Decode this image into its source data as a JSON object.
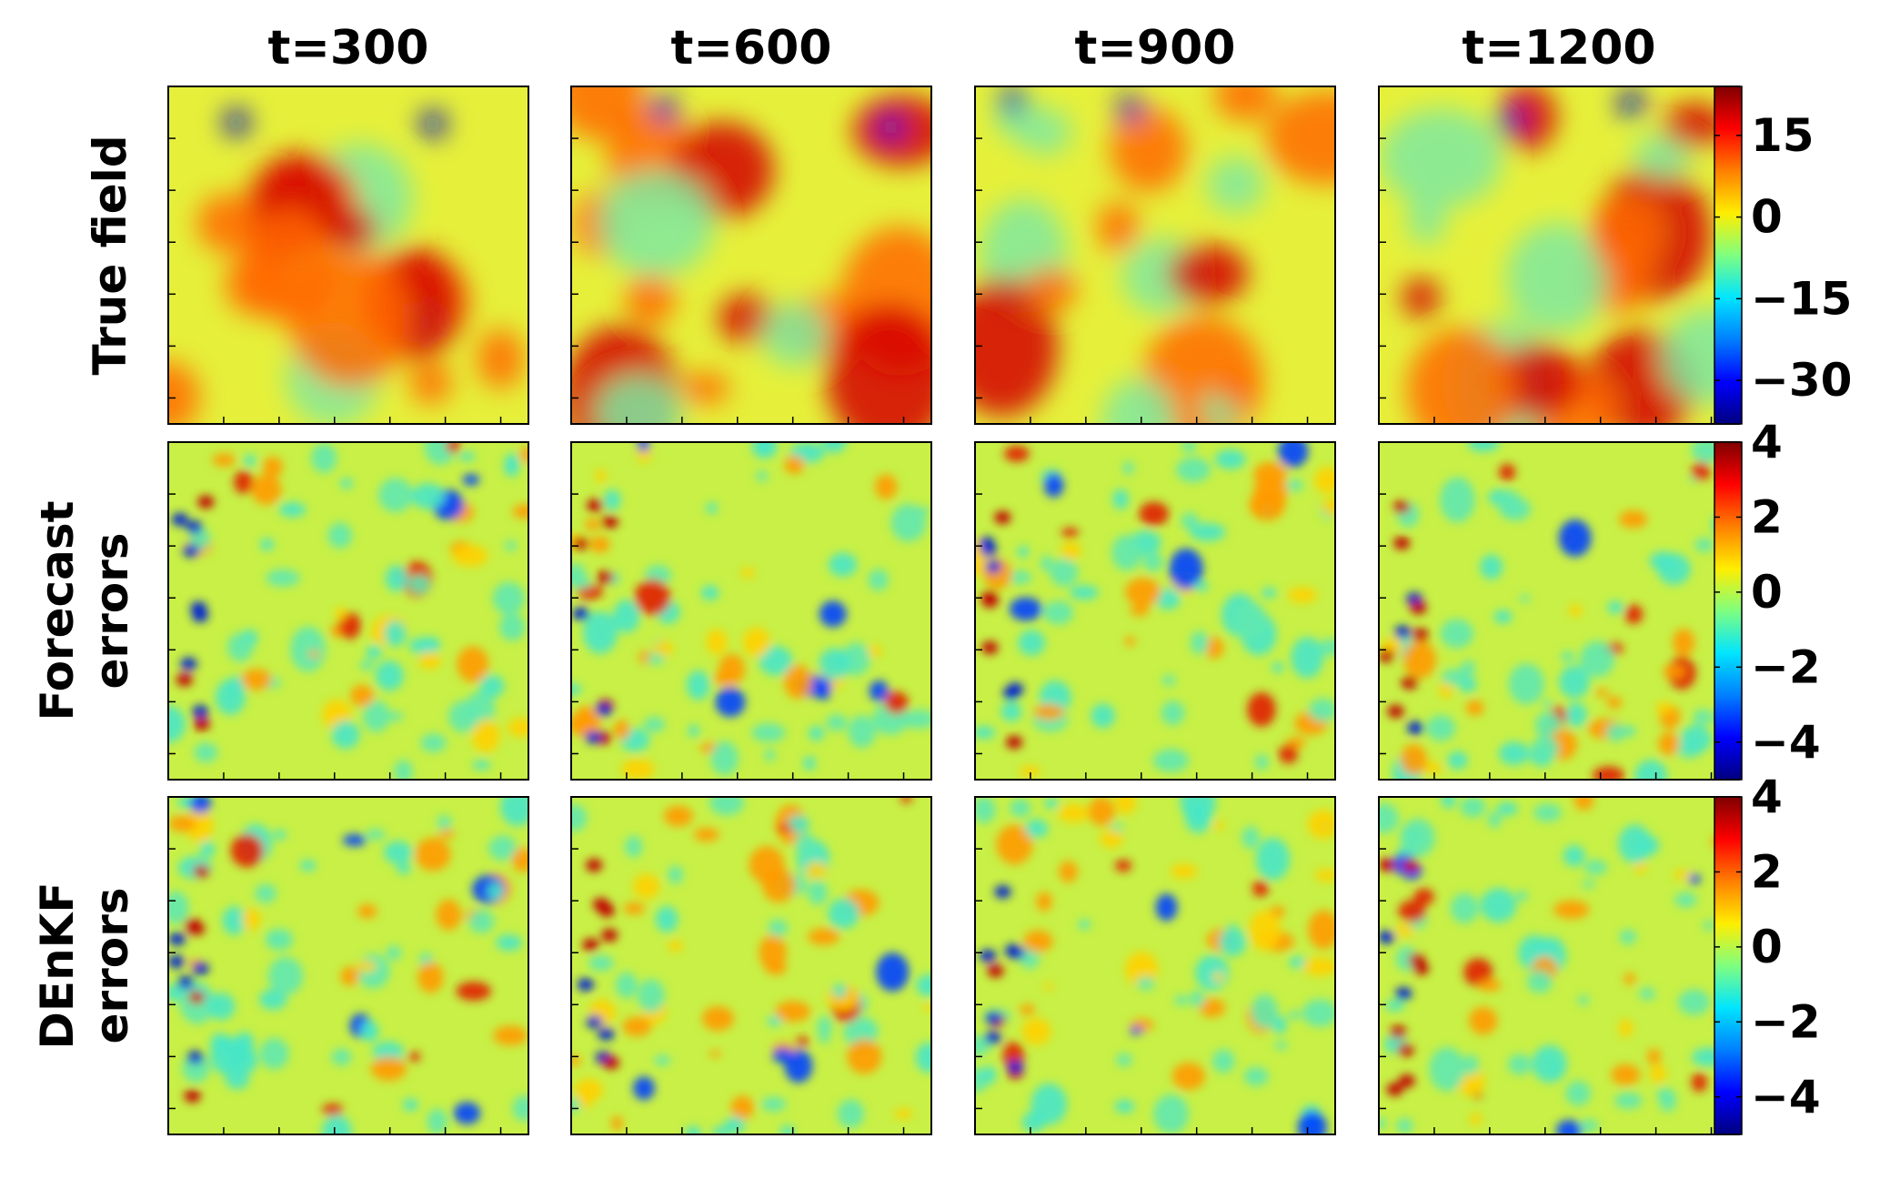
{
  "chart_data": {
    "type": "heatmap",
    "columns": [
      "t=300",
      "t=600",
      "t=900",
      "t=1200"
    ],
    "rows": [
      {
        "label_lines": [
          "True field"
        ],
        "colorbar": {
          "range": [
            -38,
            24
          ],
          "ticks": [
            15,
            0,
            -15,
            -30
          ],
          "tick_labels": [
            "15",
            "0",
            "−15",
            "−30"
          ]
        }
      },
      {
        "label_lines": [
          "Forecast",
          "errors"
        ],
        "colorbar": {
          "range": [
            -5,
            4
          ],
          "ticks": [
            4,
            2,
            0,
            -2,
            -4
          ],
          "tick_labels": [
            "4",
            "2",
            "0",
            "−2",
            "−4"
          ]
        }
      },
      {
        "label_lines": [
          "DEnKF",
          "errors"
        ],
        "colorbar": {
          "range": [
            -5,
            4
          ],
          "ticks": [
            4,
            2,
            0,
            -2,
            -4
          ],
          "tick_labels": [
            "4",
            "2",
            "0",
            "−2",
            "−4"
          ]
        }
      }
    ],
    "colormap": "jet",
    "grid": false
  }
}
